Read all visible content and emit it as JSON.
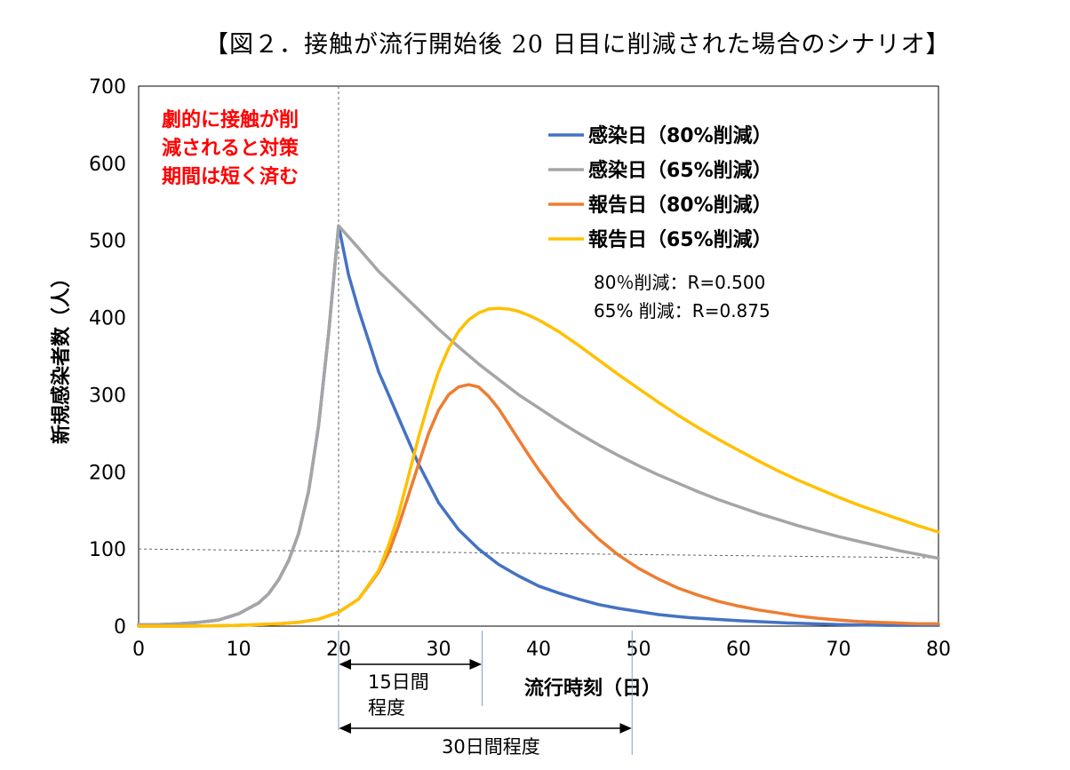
{
  "chart_data": {
    "type": "line",
    "title": "【図２．接触が流行開始後 20 日目に削減された場合のシナリオ】",
    "xlabel": "流行時刻（日）",
    "ylabel": "新規感染者数（人）",
    "xlim": [
      0,
      80
    ],
    "ylim": [
      0,
      700
    ],
    "xticks": [
      0,
      10,
      20,
      30,
      40,
      50,
      60,
      70,
      80
    ],
    "yticks": [
      0,
      100,
      200,
      300,
      400,
      500,
      600,
      700
    ],
    "x_tick_labels": [
      "0",
      "10",
      "20",
      "30",
      "40",
      "50",
      "60",
      "70",
      "80"
    ],
    "y_tick_labels": [
      "0",
      "100",
      "200",
      "300",
      "400",
      "500",
      "600",
      "700"
    ],
    "grid": false,
    "legend_position": "top-right",
    "series": [
      {
        "name": "感染日（80%削減）",
        "color": "#4472C4",
        "points": [
          [
            0,
            2
          ],
          [
            2,
            2
          ],
          [
            4,
            3
          ],
          [
            6,
            5
          ],
          [
            8,
            8
          ],
          [
            10,
            16
          ],
          [
            12,
            30
          ],
          [
            13,
            42
          ],
          [
            14,
            60
          ],
          [
            15,
            85
          ],
          [
            16,
            120
          ],
          [
            17,
            175
          ],
          [
            18,
            260
          ],
          [
            19,
            380
          ],
          [
            20,
            519
          ],
          [
            21,
            455
          ],
          [
            22,
            410
          ],
          [
            23,
            370
          ],
          [
            24,
            330
          ],
          [
            25,
            300
          ],
          [
            26,
            270
          ],
          [
            28,
            210
          ],
          [
            30,
            160
          ],
          [
            32,
            125
          ],
          [
            34,
            100
          ],
          [
            36,
            80
          ],
          [
            38,
            65
          ],
          [
            40,
            52
          ],
          [
            42,
            43
          ],
          [
            44,
            35
          ],
          [
            46,
            28
          ],
          [
            48,
            23
          ],
          [
            50,
            19
          ],
          [
            52,
            15
          ],
          [
            55,
            11
          ],
          [
            60,
            7
          ],
          [
            65,
            4
          ],
          [
            70,
            2
          ],
          [
            75,
            1
          ],
          [
            80,
            1
          ]
        ]
      },
      {
        "name": "感染日（65%削減）",
        "color": "#A5A5A5",
        "points": [
          [
            0,
            2
          ],
          [
            2,
            2
          ],
          [
            4,
            3
          ],
          [
            6,
            5
          ],
          [
            8,
            8
          ],
          [
            10,
            16
          ],
          [
            12,
            30
          ],
          [
            13,
            42
          ],
          [
            14,
            60
          ],
          [
            15,
            85
          ],
          [
            16,
            120
          ],
          [
            17,
            175
          ],
          [
            18,
            260
          ],
          [
            19,
            380
          ],
          [
            20,
            519
          ],
          [
            22,
            490
          ],
          [
            24,
            460
          ],
          [
            26,
            435
          ],
          [
            28,
            410
          ],
          [
            30,
            385
          ],
          [
            32,
            362
          ],
          [
            34,
            340
          ],
          [
            36,
            320
          ],
          [
            38,
            300
          ],
          [
            40,
            283
          ],
          [
            42,
            266
          ],
          [
            44,
            250
          ],
          [
            46,
            235
          ],
          [
            48,
            221
          ],
          [
            50,
            208
          ],
          [
            52,
            196
          ],
          [
            54,
            185
          ],
          [
            56,
            174
          ],
          [
            58,
            164
          ],
          [
            60,
            155
          ],
          [
            62,
            146
          ],
          [
            64,
            138
          ],
          [
            66,
            130
          ],
          [
            68,
            123
          ],
          [
            70,
            116
          ],
          [
            72,
            110
          ],
          [
            74,
            104
          ],
          [
            76,
            98
          ],
          [
            78,
            93
          ],
          [
            80,
            88
          ]
        ]
      },
      {
        "name": "報告日（80%削減）",
        "color": "#ED7D31",
        "points": [
          [
            0,
            0
          ],
          [
            5,
            0
          ],
          [
            10,
            1
          ],
          [
            12,
            2
          ],
          [
            14,
            3
          ],
          [
            16,
            5
          ],
          [
            18,
            9
          ],
          [
            20,
            18
          ],
          [
            22,
            35
          ],
          [
            24,
            70
          ],
          [
            25,
            95
          ],
          [
            26,
            130
          ],
          [
            27,
            170
          ],
          [
            28,
            210
          ],
          [
            29,
            250
          ],
          [
            30,
            280
          ],
          [
            31,
            300
          ],
          [
            32,
            310
          ],
          [
            33,
            313
          ],
          [
            34,
            310
          ],
          [
            35,
            298
          ],
          [
            36,
            282
          ],
          [
            37,
            262
          ],
          [
            38,
            242
          ],
          [
            39,
            222
          ],
          [
            40,
            203
          ],
          [
            42,
            168
          ],
          [
            44,
            138
          ],
          [
            46,
            113
          ],
          [
            48,
            92
          ],
          [
            50,
            75
          ],
          [
            52,
            61
          ],
          [
            54,
            49
          ],
          [
            56,
            40
          ],
          [
            58,
            32
          ],
          [
            60,
            26
          ],
          [
            62,
            21
          ],
          [
            64,
            17
          ],
          [
            66,
            13
          ],
          [
            68,
            10
          ],
          [
            70,
            8
          ],
          [
            72,
            6
          ],
          [
            74,
            5
          ],
          [
            76,
            4
          ],
          [
            78,
            3
          ],
          [
            80,
            3
          ]
        ]
      },
      {
        "name": "報告日（65%削減）",
        "color": "#FFC000",
        "points": [
          [
            0,
            0
          ],
          [
            5,
            0
          ],
          [
            10,
            1
          ],
          [
            12,
            2
          ],
          [
            14,
            3
          ],
          [
            16,
            5
          ],
          [
            18,
            9
          ],
          [
            20,
            18
          ],
          [
            22,
            35
          ],
          [
            24,
            72
          ],
          [
            25,
            105
          ],
          [
            26,
            145
          ],
          [
            27,
            195
          ],
          [
            28,
            245
          ],
          [
            29,
            290
          ],
          [
            30,
            330
          ],
          [
            31,
            360
          ],
          [
            32,
            382
          ],
          [
            33,
            397
          ],
          [
            34,
            406
          ],
          [
            35,
            411
          ],
          [
            36,
            412
          ],
          [
            37,
            411
          ],
          [
            38,
            408
          ],
          [
            39,
            403
          ],
          [
            40,
            397
          ],
          [
            42,
            382
          ],
          [
            44,
            364
          ],
          [
            46,
            345
          ],
          [
            48,
            326
          ],
          [
            50,
            308
          ],
          [
            52,
            290
          ],
          [
            54,
            273
          ],
          [
            56,
            257
          ],
          [
            58,
            242
          ],
          [
            60,
            228
          ],
          [
            62,
            214
          ],
          [
            64,
            201
          ],
          [
            66,
            189
          ],
          [
            68,
            178
          ],
          [
            70,
            167
          ],
          [
            72,
            157
          ],
          [
            74,
            148
          ],
          [
            76,
            139
          ],
          [
            78,
            130
          ],
          [
            80,
            122
          ]
        ]
      }
    ],
    "reference_lines": {
      "vertical_x": 20,
      "horizontal_y": 100
    },
    "annotations": {
      "red_note_lines": [
        "劇的に接触が削",
        "減されると対策",
        "期間は短く済む"
      ],
      "r_values": [
        "80％削減：R=0.500",
        "65% 削減：R=0.875"
      ],
      "arrow_15": {
        "from_day": 20,
        "to_day": 34,
        "label_lines": [
          "15日間",
          "程度"
        ]
      },
      "arrow_30": {
        "from_day": 20,
        "to_day": 49,
        "label": "30日間程度"
      }
    }
  }
}
